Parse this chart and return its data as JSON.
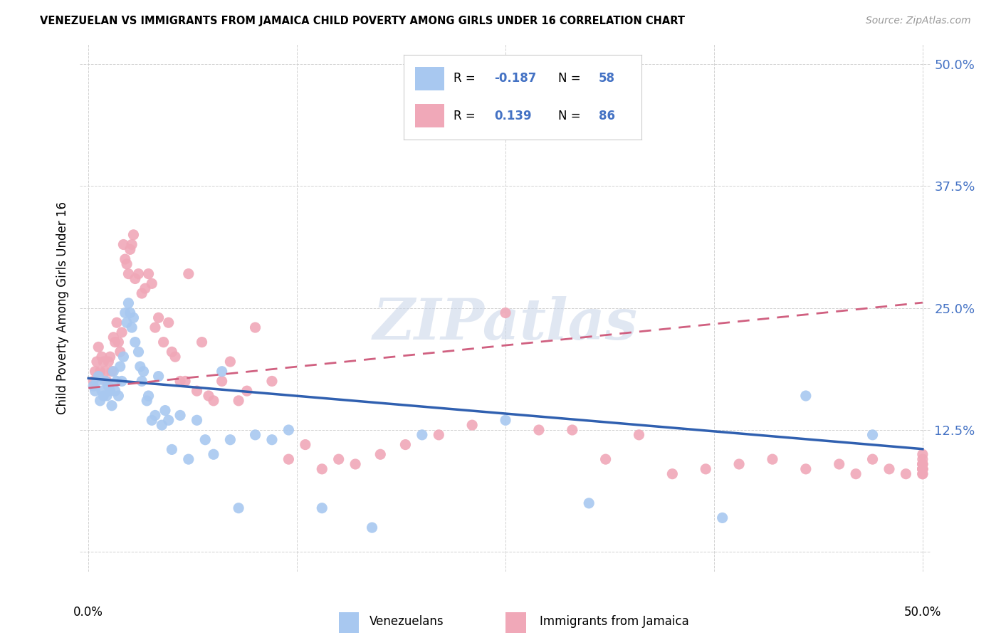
{
  "title": "VENEZUELAN VS IMMIGRANTS FROM JAMAICA CHILD POVERTY AMONG GIRLS UNDER 16 CORRELATION CHART",
  "source": "Source: ZipAtlas.com",
  "ylabel": "Child Poverty Among Girls Under 16",
  "xlim": [
    0.0,
    0.5
  ],
  "ylim": [
    0.0,
    0.52
  ],
  "yticks": [
    0.0,
    0.125,
    0.25,
    0.375,
    0.5
  ],
  "ytick_labels": [
    "",
    "12.5%",
    "25.0%",
    "37.5%",
    "50.0%"
  ],
  "xtick_labels": [
    "0.0%",
    "",
    "",
    "",
    "50.0%"
  ],
  "watermark": "ZIPatlas",
  "legend_R1": "-0.187",
  "legend_N1": "58",
  "legend_R2": "0.139",
  "legend_N2": "86",
  "venezuelan_color": "#a8c8f0",
  "jamaica_color": "#f0a8b8",
  "venezuelan_line_color": "#3060b0",
  "jamaica_line_color": "#d06080",
  "background_color": "#ffffff",
  "ven_line_intercept": 0.178,
  "ven_line_slope": -0.145,
  "jam_line_intercept": 0.168,
  "jam_line_slope": 0.175,
  "venezuelan_x": [
    0.003,
    0.004,
    0.005,
    0.006,
    0.007,
    0.008,
    0.009,
    0.01,
    0.011,
    0.012,
    0.013,
    0.014,
    0.015,
    0.016,
    0.017,
    0.018,
    0.019,
    0.02,
    0.021,
    0.022,
    0.023,
    0.024,
    0.025,
    0.026,
    0.027,
    0.028,
    0.03,
    0.031,
    0.032,
    0.033,
    0.035,
    0.036,
    0.038,
    0.04,
    0.042,
    0.044,
    0.046,
    0.048,
    0.05,
    0.055,
    0.06,
    0.065,
    0.07,
    0.075,
    0.08,
    0.085,
    0.09,
    0.1,
    0.11,
    0.12,
    0.14,
    0.17,
    0.2,
    0.25,
    0.3,
    0.38,
    0.43,
    0.47
  ],
  "venezuelan_y": [
    0.17,
    0.165,
    0.175,
    0.18,
    0.155,
    0.165,
    0.16,
    0.175,
    0.16,
    0.17,
    0.165,
    0.15,
    0.185,
    0.165,
    0.175,
    0.16,
    0.19,
    0.175,
    0.2,
    0.245,
    0.235,
    0.255,
    0.245,
    0.23,
    0.24,
    0.215,
    0.205,
    0.19,
    0.175,
    0.185,
    0.155,
    0.16,
    0.135,
    0.14,
    0.18,
    0.13,
    0.145,
    0.135,
    0.105,
    0.14,
    0.095,
    0.135,
    0.115,
    0.1,
    0.185,
    0.115,
    0.045,
    0.12,
    0.115,
    0.125,
    0.045,
    0.025,
    0.12,
    0.135,
    0.05,
    0.035,
    0.16,
    0.12
  ],
  "jamaica_x": [
    0.003,
    0.004,
    0.005,
    0.006,
    0.007,
    0.008,
    0.009,
    0.01,
    0.011,
    0.012,
    0.013,
    0.014,
    0.015,
    0.016,
    0.017,
    0.018,
    0.019,
    0.02,
    0.021,
    0.022,
    0.023,
    0.024,
    0.025,
    0.026,
    0.027,
    0.028,
    0.03,
    0.032,
    0.034,
    0.036,
    0.038,
    0.04,
    0.042,
    0.045,
    0.048,
    0.05,
    0.052,
    0.055,
    0.058,
    0.06,
    0.065,
    0.068,
    0.072,
    0.075,
    0.08,
    0.085,
    0.09,
    0.095,
    0.1,
    0.11,
    0.12,
    0.13,
    0.14,
    0.15,
    0.16,
    0.175,
    0.19,
    0.21,
    0.23,
    0.25,
    0.27,
    0.29,
    0.31,
    0.33,
    0.35,
    0.37,
    0.39,
    0.41,
    0.43,
    0.45,
    0.46,
    0.47,
    0.48,
    0.49,
    0.5,
    0.5,
    0.5,
    0.5,
    0.5,
    0.5,
    0.5,
    0.5,
    0.5,
    0.5,
    0.5,
    0.5
  ],
  "jamaica_y": [
    0.175,
    0.185,
    0.195,
    0.21,
    0.185,
    0.2,
    0.195,
    0.185,
    0.175,
    0.195,
    0.2,
    0.185,
    0.22,
    0.215,
    0.235,
    0.215,
    0.205,
    0.225,
    0.315,
    0.3,
    0.295,
    0.285,
    0.31,
    0.315,
    0.325,
    0.28,
    0.285,
    0.265,
    0.27,
    0.285,
    0.275,
    0.23,
    0.24,
    0.215,
    0.235,
    0.205,
    0.2,
    0.175,
    0.175,
    0.285,
    0.165,
    0.215,
    0.16,
    0.155,
    0.175,
    0.195,
    0.155,
    0.165,
    0.23,
    0.175,
    0.095,
    0.11,
    0.085,
    0.095,
    0.09,
    0.1,
    0.11,
    0.12,
    0.13,
    0.245,
    0.125,
    0.125,
    0.095,
    0.12,
    0.08,
    0.085,
    0.09,
    0.095,
    0.085,
    0.09,
    0.08,
    0.095,
    0.085,
    0.08,
    0.09,
    0.085,
    0.08,
    0.085,
    0.09,
    0.095,
    0.085,
    0.1,
    0.085,
    0.08,
    0.09,
    0.085
  ]
}
